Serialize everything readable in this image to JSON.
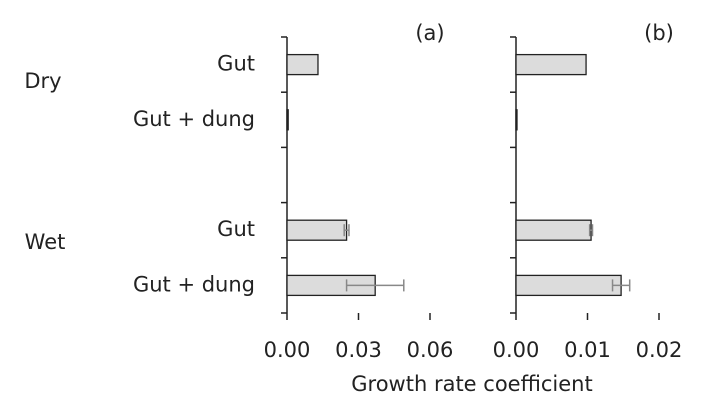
{
  "chart_data": [
    {
      "type": "bar",
      "orientation": "horizontal",
      "panel_label": "(a)",
      "categories": [
        "Gut",
        "Gut + dung",
        null,
        "Gut",
        "Gut + dung"
      ],
      "values": [
        0.013,
        0.0005,
        null,
        0.025,
        0.037
      ],
      "errors": [
        null,
        null,
        null,
        0.001,
        0.012
      ],
      "color": "#dcdcdc",
      "error_color": "#888888",
      "xlim": [
        0,
        0.06
      ],
      "xticks": [
        {
          "value": 0,
          "label": "0.00"
        },
        {
          "value": 0.03,
          "label": "0.03"
        },
        {
          "value": 0.06,
          "label": "0.06"
        }
      ]
    },
    {
      "type": "bar",
      "orientation": "horizontal",
      "panel_label": "(b)",
      "categories": [
        null,
        null,
        null,
        null,
        null
      ],
      "values": [
        0.0098,
        0.0001,
        null,
        0.0105,
        0.0147
      ],
      "errors": [
        null,
        null,
        null,
        0.0002,
        0.0012
      ],
      "color": "#dcdcdc",
      "error_color": "#888888",
      "xlim": [
        0,
        0.02
      ],
      "xticks": [
        {
          "value": 0,
          "label": "0.00"
        },
        {
          "value": 0.01,
          "label": "0.01"
        },
        {
          "value": 0.02,
          "label": "0.02"
        }
      ]
    }
  ],
  "xlabel": "Growth rate coefficient",
  "groups": [
    "Dry",
    "Wet"
  ]
}
